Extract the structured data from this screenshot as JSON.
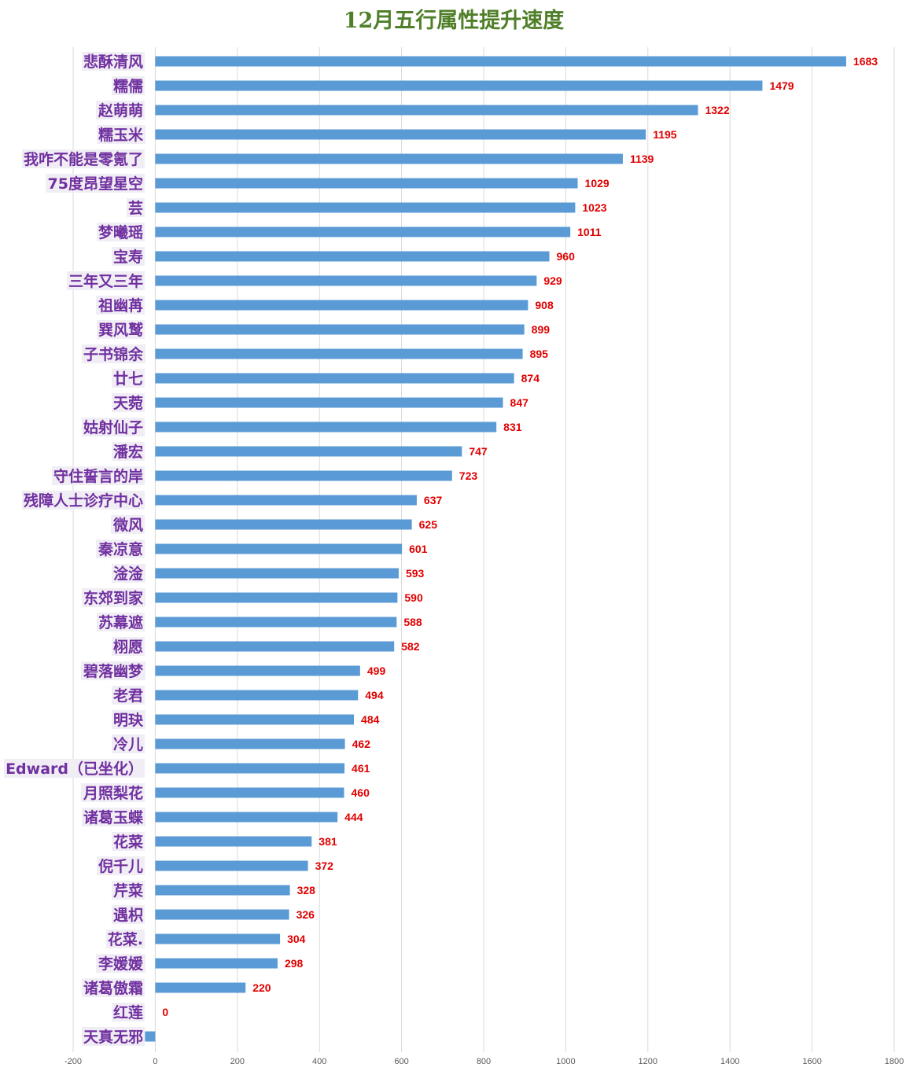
{
  "chart_data": {
    "type": "bar",
    "orientation": "horizontal",
    "title": "12月五行属性提升速度",
    "xlabel": "",
    "ylabel": "",
    "xlim": [
      -200,
      1800
    ],
    "x_ticks": [
      -200,
      0,
      200,
      400,
      600,
      800,
      1000,
      1200,
      1400,
      1600,
      1800
    ],
    "grid": "vertical",
    "legend": "none",
    "colors": {
      "bar": "#5b9bd5",
      "value_label": "#e00000",
      "category_label": "#7030a0",
      "title": "#4f7f28"
    },
    "categories": [
      "悲酥清风",
      "糯儒",
      "赵萌萌",
      "糯玉米",
      "我咋不能是零氪了",
      "75度昂望星空",
      "芸",
      "梦曦瑶",
      "宝寿",
      "三年又三年",
      "祖幽苒",
      "巽风鹫",
      "子书锦余",
      "廿七",
      "天菀",
      "姑射仙子",
      "潘宏",
      "守住誓言的岸",
      "残障人士诊疗中心",
      "微风",
      "秦凉意",
      "淦淦",
      "东郊到家",
      "苏幕遮",
      "栩愿",
      "碧落幽梦",
      "老君",
      "明玦",
      "冷儿",
      "Edward（已坐化）",
      "月照梨花",
      "诸葛玉蝶",
      "花菜",
      "倪千儿",
      "芹菜",
      "遇枳",
      "花菜.",
      "李媛媛",
      "诸葛傲霜",
      "红莲",
      "天真无邪"
    ],
    "values": [
      1683,
      1479,
      1322,
      1195,
      1139,
      1029,
      1023,
      1011,
      960,
      929,
      908,
      899,
      895,
      874,
      847,
      831,
      747,
      723,
      637,
      625,
      601,
      593,
      590,
      588,
      582,
      499,
      494,
      484,
      462,
      461,
      460,
      444,
      381,
      372,
      328,
      326,
      304,
      298,
      220,
      0,
      -25
    ],
    "data_labels": [
      "1683",
      "1479",
      "1322",
      "1195",
      "1139",
      "1029",
      "1023",
      "1011",
      "960",
      "929",
      "908",
      "899",
      "895",
      "874",
      "847",
      "831",
      "747",
      "723",
      "637",
      "625",
      "601",
      "593",
      "590",
      "588",
      "582",
      "499",
      "494",
      "484",
      "462",
      "461",
      "460",
      "444",
      "381",
      "372",
      "328",
      "326",
      "304",
      "298",
      "220",
      "0",
      ""
    ]
  }
}
